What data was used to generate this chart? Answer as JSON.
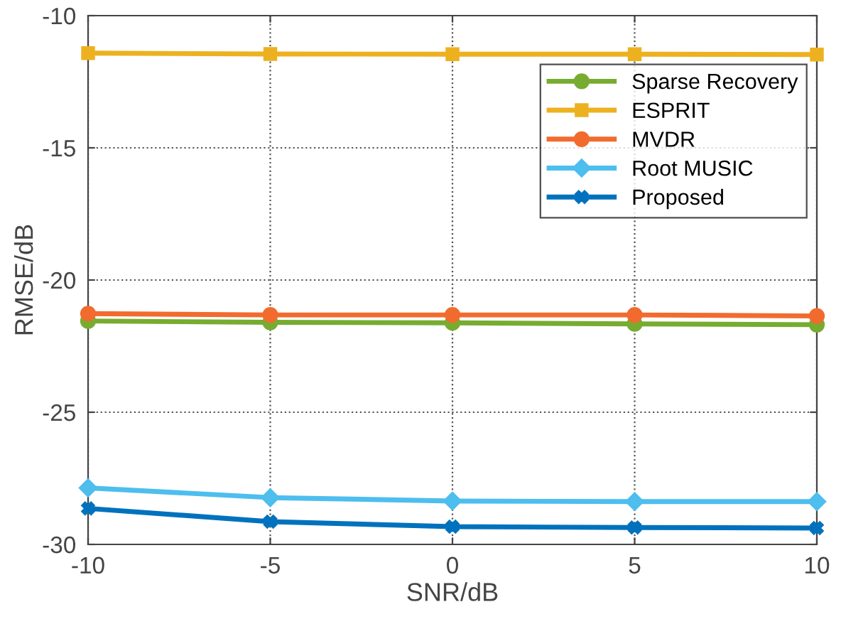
{
  "chart_data": {
    "type": "line",
    "xlabel": "SNR/dB",
    "ylabel": "RMSE/dB",
    "x": [
      -10,
      -5,
      0,
      5,
      10
    ],
    "xlim": [
      -10,
      10
    ],
    "xticks": [
      -10,
      -5,
      0,
      5,
      10
    ],
    "ylim": [
      -30,
      -10
    ],
    "yticks": [
      -30,
      -25,
      -20,
      -15,
      -10
    ],
    "grid": true,
    "legend": "top right",
    "line_style": "solid",
    "series": [
      {
        "name": "Sparse Recovery",
        "color": "#77ac30",
        "marker": "circle",
        "values": [
          -21.55,
          -21.6,
          -21.62,
          -21.66,
          -21.69
        ]
      },
      {
        "name": "ESPRIT",
        "color": "#edb120",
        "marker": "square",
        "values": [
          -11.42,
          -11.45,
          -11.46,
          -11.46,
          -11.47
        ]
      },
      {
        "name": "MVDR",
        "color": "#f26b2e",
        "marker": "circle",
        "values": [
          -21.27,
          -21.32,
          -21.32,
          -21.32,
          -21.36
        ]
      },
      {
        "name": "Root MUSIC",
        "color": "#4dbeee",
        "marker": "diamond",
        "values": [
          -27.86,
          -28.23,
          -28.36,
          -28.38,
          -28.38
        ]
      },
      {
        "name": "Proposed",
        "color": "#0072bd",
        "marker": "cross",
        "values": [
          -28.64,
          -29.14,
          -29.33,
          -29.36,
          -29.38
        ]
      }
    ]
  }
}
